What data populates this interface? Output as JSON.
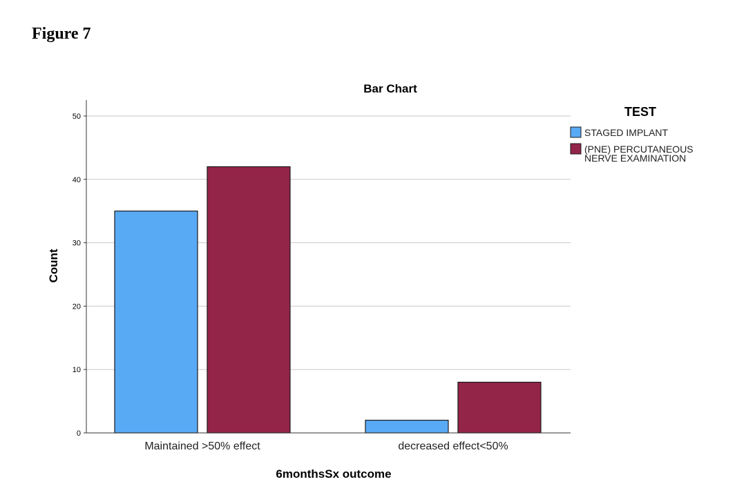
{
  "figure_label": "Figure 7",
  "chart_data": {
    "type": "bar",
    "title": "Bar Chart",
    "xlabel": "6monthsSx outcome",
    "ylabel": "Count",
    "categories": [
      "Maintained >50% effect",
      "decreased effect<50%"
    ],
    "series": [
      {
        "name": "STAGED IMPLANT",
        "values": [
          35,
          2
        ],
        "color": "#59aaf5"
      },
      {
        "name_lines": [
          "(PNE) PERCUTANEOUS",
          "NERVE EXAMINATION"
        ],
        "name": "(PNE) PERCUTANEOUS NERVE EXAMINATION",
        "values": [
          42,
          8
        ],
        "color": "#932549"
      }
    ],
    "ylim": [
      0,
      52
    ],
    "yticks": [
      0,
      10,
      20,
      30,
      40,
      50
    ],
    "grid": true,
    "legend": {
      "title": "TEST",
      "placement": "right"
    }
  }
}
